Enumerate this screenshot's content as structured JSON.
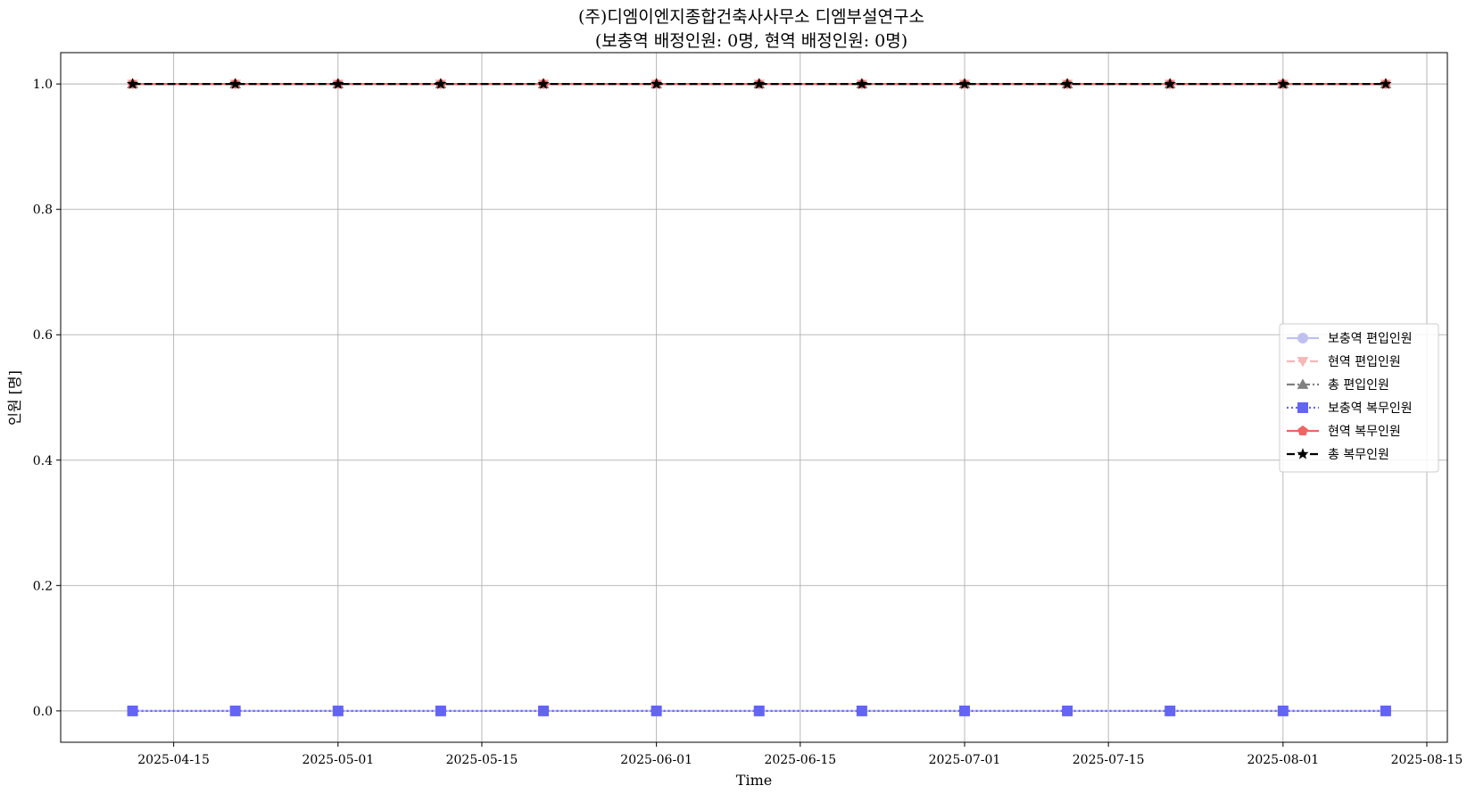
{
  "chart_data": {
    "type": "line",
    "title": "(주)디엠이엔지종합건축사사무소 디엠부설연구소",
    "subtitle": "(보충역 배정인원: 0명, 현역 배정인원: 0명)",
    "xlabel": "Time",
    "ylabel": "인원 [명]",
    "x_tick_labels": [
      "2025-04-15",
      "2025-05-01",
      "2025-05-15",
      "2025-06-01",
      "2025-06-15",
      "2025-07-01",
      "2025-07-15",
      "2025-08-01",
      "2025-08-15"
    ],
    "x_tick_dates": [
      "2025-04-15",
      "2025-05-01",
      "2025-05-15",
      "2025-06-01",
      "2025-06-15",
      "2025-07-01",
      "2025-07-15",
      "2025-08-01",
      "2025-08-15"
    ],
    "y_tick_labels": [
      "0.0",
      "0.2",
      "0.4",
      "0.6",
      "0.8",
      "1.0"
    ],
    "y_tick_values": [
      0.0,
      0.2,
      0.4,
      0.6,
      0.8,
      1.0
    ],
    "xlim": [
      "2025-04-04",
      "2025-08-17"
    ],
    "ylim": [
      -0.05,
      1.05
    ],
    "grid": true,
    "legend_position": "center-right",
    "x": [
      "2025-04-11",
      "2025-04-21",
      "2025-05-01",
      "2025-05-11",
      "2025-05-21",
      "2025-06-01",
      "2025-06-11",
      "2025-06-21",
      "2025-07-01",
      "2025-07-11",
      "2025-07-21",
      "2025-08-01",
      "2025-08-11"
    ],
    "series": [
      {
        "name": "보충역 편입인원",
        "color": "#c0c0f0",
        "marker": "circle",
        "line": "solid",
        "values": [
          0,
          0,
          0,
          0,
          0,
          0,
          0,
          0,
          0,
          0,
          0,
          0,
          0
        ]
      },
      {
        "name": "현역 편입인원",
        "color": "#f4b8b8",
        "marker": "triangle-down",
        "line": "dashed",
        "values": [
          1,
          1,
          1,
          1,
          1,
          1,
          1,
          1,
          1,
          1,
          1,
          1,
          1
        ]
      },
      {
        "name": "총 편입인원",
        "color": "#808080",
        "marker": "triangle-up",
        "line": "dashdot",
        "values": [
          1,
          1,
          1,
          1,
          1,
          1,
          1,
          1,
          1,
          1,
          1,
          1,
          1
        ]
      },
      {
        "name": "보충역 복무인원",
        "color": "#6464f4",
        "marker": "square",
        "line": "dotted",
        "values": [
          0,
          0,
          0,
          0,
          0,
          0,
          0,
          0,
          0,
          0,
          0,
          0,
          0
        ]
      },
      {
        "name": "현역 복무인원",
        "color": "#f06464",
        "marker": "pentagon",
        "line": "solid",
        "values": [
          1,
          1,
          1,
          1,
          1,
          1,
          1,
          1,
          1,
          1,
          1,
          1,
          1
        ]
      },
      {
        "name": "총 복무인원",
        "color": "#000000",
        "marker": "star",
        "line": "dashed",
        "values": [
          1,
          1,
          1,
          1,
          1,
          1,
          1,
          1,
          1,
          1,
          1,
          1,
          1
        ]
      }
    ]
  }
}
